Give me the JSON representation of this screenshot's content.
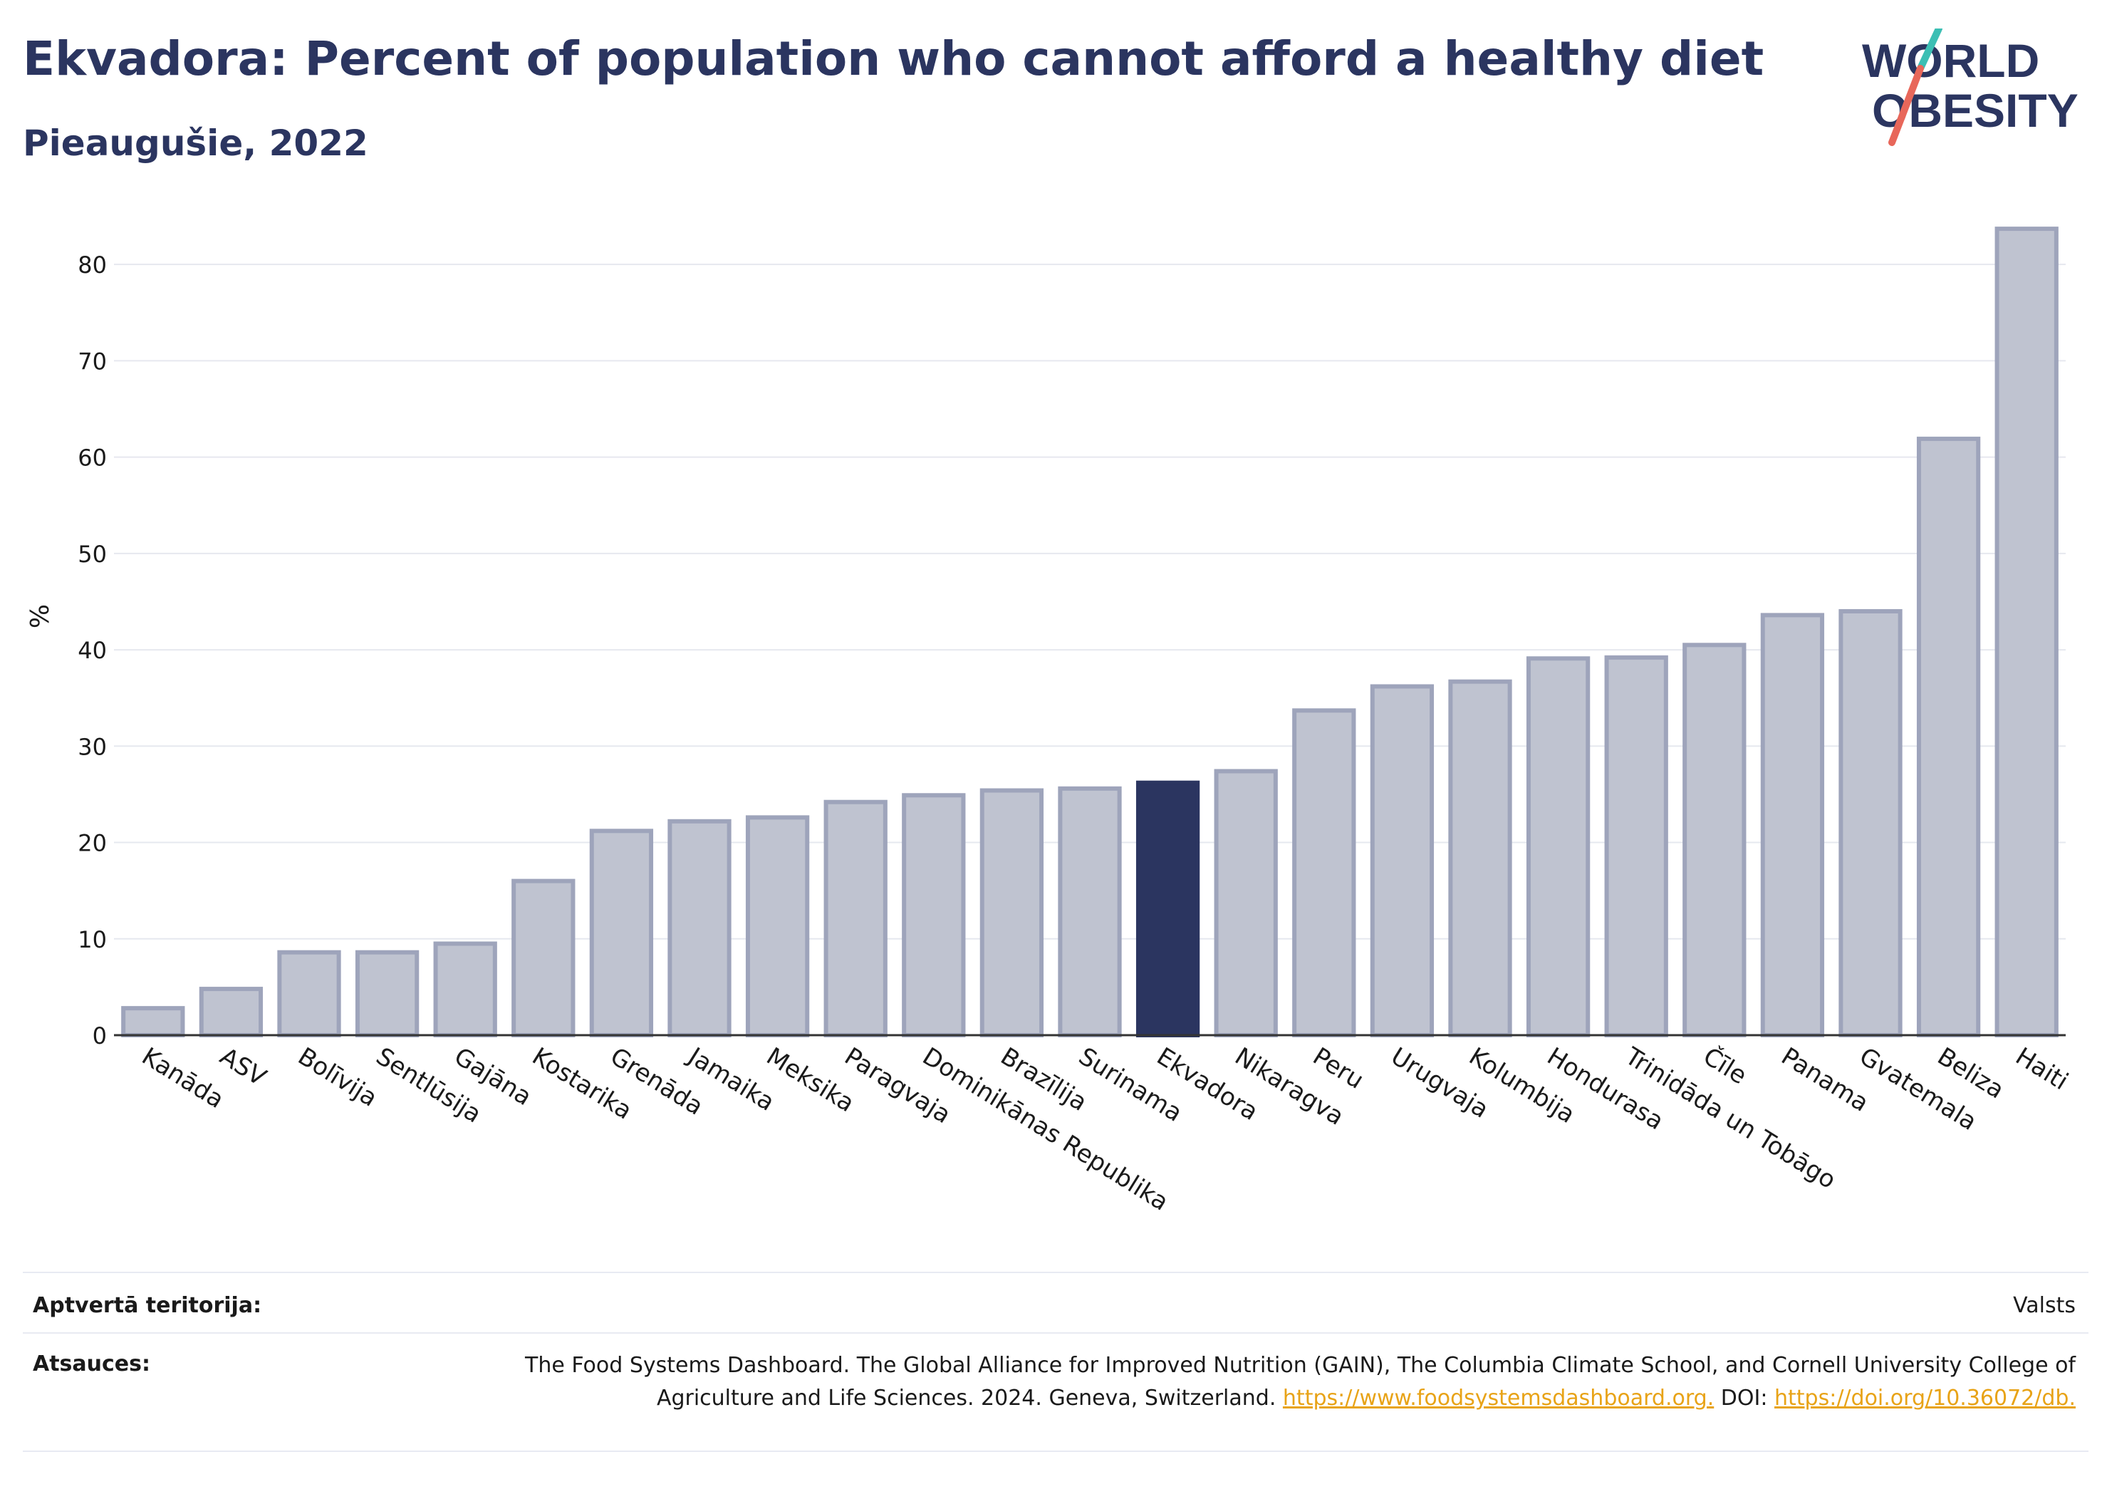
{
  "header": {
    "title": "Ekvadora: Percent of population who cannot afford a healthy diet",
    "subtitle": "Pieaugušie, 2022"
  },
  "logo": {
    "line1": "WORLD",
    "line2": "OBESITY"
  },
  "chart_data": {
    "type": "bar",
    "ylabel": "%",
    "ylim": [
      0,
      86
    ],
    "yticks": [
      0,
      10,
      20,
      30,
      40,
      50,
      60,
      70,
      80
    ],
    "grid": true,
    "categories": [
      "Kanāda",
      "ASV",
      "Bolīvija",
      "Sentlūsija",
      "Gajāna",
      "Kostarika",
      "Grenāda",
      "Jamaika",
      "Meksika",
      "Paragvaja",
      "Dominikānas Republika",
      "Brazīlija",
      "Surinama",
      "Ekvadora",
      "Nikaragva",
      "Peru",
      "Urugvaja",
      "Kolumbija",
      "Hondurasa",
      "Trinidāda un Tobāgo",
      "Čīle",
      "Panama",
      "Gvatemala",
      "Beliza",
      "Haiti"
    ],
    "values": [
      2.8,
      4.8,
      8.6,
      8.6,
      9.5,
      16.0,
      21.2,
      22.2,
      22.6,
      24.2,
      24.9,
      25.4,
      25.6,
      26.2,
      27.4,
      33.7,
      36.2,
      36.7,
      39.1,
      39.2,
      40.5,
      43.6,
      44.0,
      61.9,
      83.7
    ],
    "highlight": "Ekvadora",
    "colors": {
      "bar": "#bfc3d0",
      "bar_border": "#9ea4bb",
      "highlight": "#2b3560"
    }
  },
  "footer": {
    "coverage_label": "Aptvertā teritorija:",
    "coverage_value": "Valsts",
    "sources_label": "Atsauces:",
    "sources_text": "The Food Systems Dashboard. The Global Alliance for Improved Nutrition (GAIN), The Columbia Climate School, and Cornell University College of Agriculture and Life Sciences. 2024. Geneva, Switzerland.",
    "sources_link1": "https://www.foodsystemsdashboard.org.",
    "sources_doi_label": "DOI:",
    "sources_link2": "https://doi.org/10.36072/db."
  }
}
